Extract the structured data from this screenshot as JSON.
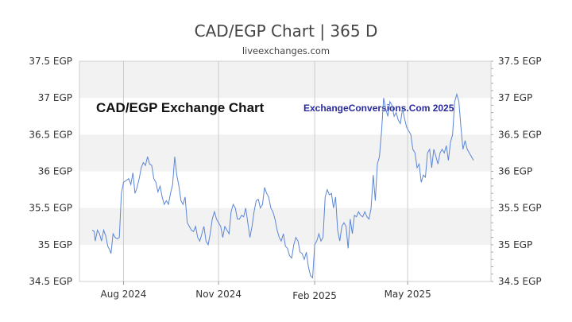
{
  "header": {
    "title": "CAD/EGP Chart | 365 D",
    "subtitle": "liveexchanges.com"
  },
  "watermarks": {
    "chart_label": "CAD/EGP Exchange Chart",
    "credit": "ExchangeConversions.Com 2025"
  },
  "colors": {
    "line": "#5b86d6",
    "band": "#f2f2f2",
    "grid": "#cccccc"
  },
  "chart_data": {
    "type": "line",
    "title": "CAD/EGP Chart | 365 D",
    "xlabel": "",
    "ylabel": "",
    "ylim": [
      34.5,
      37.5
    ],
    "y_ticks": [
      37.5,
      37,
      36.5,
      36,
      35.5,
      35,
      34.5
    ],
    "y_tick_labels": [
      "37.5 EGP",
      "37 EGP",
      "36.5 EGP",
      "36 EGP",
      "35.5 EGP",
      "35 EGP",
      "34.5 EGP"
    ],
    "x_range_days": [
      0,
      365
    ],
    "x_ticks": [
      {
        "day": 30,
        "label": "Aug 2024"
      },
      {
        "day": 121,
        "label": "Nov 2024"
      },
      {
        "day": 213,
        "label": "Feb 2025"
      },
      {
        "day": 302,
        "label": "May 2025"
      }
    ],
    "series": [
      {
        "name": "CAD/EGP",
        "points": [
          [
            0,
            35.2
          ],
          [
            2,
            35.18
          ],
          [
            3,
            35.05
          ],
          [
            5,
            35.2
          ],
          [
            7,
            35.15
          ],
          [
            9,
            35.05
          ],
          [
            11,
            35.2
          ],
          [
            13,
            35.12
          ],
          [
            15,
            34.98
          ],
          [
            17,
            34.92
          ],
          [
            18,
            34.88
          ],
          [
            20,
            35.15
          ],
          [
            22,
            35.1
          ],
          [
            24,
            35.08
          ],
          [
            26,
            35.1
          ],
          [
            28,
            35.7
          ],
          [
            30,
            35.85
          ],
          [
            33,
            35.88
          ],
          [
            35,
            35.9
          ],
          [
            37,
            35.82
          ],
          [
            39,
            35.98
          ],
          [
            41,
            35.7
          ],
          [
            43,
            35.78
          ],
          [
            45,
            35.9
          ],
          [
            47,
            36.05
          ],
          [
            49,
            36.12
          ],
          [
            51,
            36.08
          ],
          [
            53,
            36.2
          ],
          [
            55,
            36.1
          ],
          [
            57,
            36.08
          ],
          [
            59,
            35.9
          ],
          [
            61,
            35.85
          ],
          [
            63,
            35.72
          ],
          [
            65,
            35.8
          ],
          [
            67,
            35.65
          ],
          [
            69,
            35.55
          ],
          [
            71,
            35.6
          ],
          [
            73,
            35.55
          ],
          [
            75,
            35.7
          ],
          [
            77,
            35.82
          ],
          [
            79,
            36.2
          ],
          [
            81,
            35.95
          ],
          [
            83,
            35.8
          ],
          [
            85,
            35.6
          ],
          [
            87,
            35.55
          ],
          [
            89,
            35.65
          ],
          [
            91,
            35.3
          ],
          [
            93,
            35.25
          ],
          [
            95,
            35.2
          ],
          [
            97,
            35.18
          ],
          [
            99,
            35.25
          ],
          [
            101,
            35.1
          ],
          [
            103,
            35.05
          ],
          [
            105,
            35.15
          ],
          [
            107,
            35.25
          ],
          [
            109,
            35.05
          ],
          [
            111,
            35.0
          ],
          [
            113,
            35.15
          ],
          [
            115,
            35.35
          ],
          [
            117,
            35.45
          ],
          [
            119,
            35.35
          ],
          [
            121,
            35.3
          ],
          [
            123,
            35.25
          ],
          [
            125,
            35.1
          ],
          [
            127,
            35.25
          ],
          [
            129,
            35.2
          ],
          [
            131,
            35.15
          ],
          [
            133,
            35.45
          ],
          [
            135,
            35.55
          ],
          [
            137,
            35.5
          ],
          [
            139,
            35.35
          ],
          [
            141,
            35.35
          ],
          [
            143,
            35.4
          ],
          [
            145,
            35.38
          ],
          [
            147,
            35.5
          ],
          [
            149,
            35.3
          ],
          [
            151,
            35.1
          ],
          [
            153,
            35.25
          ],
          [
            155,
            35.45
          ],
          [
            157,
            35.6
          ],
          [
            159,
            35.62
          ],
          [
            161,
            35.5
          ],
          [
            163,
            35.55
          ],
          [
            165,
            35.78
          ],
          [
            167,
            35.7
          ],
          [
            169,
            35.65
          ],
          [
            171,
            35.5
          ],
          [
            173,
            35.45
          ],
          [
            175,
            35.35
          ],
          [
            177,
            35.2
          ],
          [
            179,
            35.1
          ],
          [
            181,
            35.05
          ],
          [
            183,
            35.15
          ],
          [
            185,
            34.98
          ],
          [
            187,
            34.95
          ],
          [
            189,
            34.85
          ],
          [
            191,
            34.82
          ],
          [
            193,
            35.0
          ],
          [
            195,
            35.1
          ],
          [
            197,
            35.05
          ],
          [
            199,
            34.9
          ],
          [
            201,
            34.88
          ],
          [
            203,
            34.8
          ],
          [
            205,
            34.9
          ],
          [
            207,
            34.7
          ],
          [
            209,
            34.58
          ],
          [
            211,
            34.55
          ],
          [
            213,
            35.0
          ],
          [
            215,
            35.05
          ],
          [
            217,
            35.15
          ],
          [
            219,
            35.05
          ],
          [
            221,
            35.1
          ],
          [
            223,
            35.65
          ],
          [
            225,
            35.75
          ],
          [
            227,
            35.68
          ],
          [
            229,
            35.7
          ],
          [
            231,
            35.5
          ],
          [
            233,
            35.65
          ],
          [
            235,
            35.2
          ],
          [
            237,
            35.05
          ],
          [
            239,
            35.25
          ],
          [
            241,
            35.3
          ],
          [
            243,
            35.25
          ],
          [
            245,
            34.95
          ],
          [
            247,
            35.35
          ],
          [
            249,
            35.15
          ],
          [
            251,
            35.4
          ],
          [
            253,
            35.38
          ],
          [
            255,
            35.45
          ],
          [
            257,
            35.4
          ],
          [
            259,
            35.38
          ],
          [
            261,
            35.45
          ],
          [
            263,
            35.38
          ],
          [
            265,
            35.35
          ],
          [
            267,
            35.5
          ],
          [
            269,
            35.95
          ],
          [
            271,
            35.6
          ],
          [
            273,
            36.1
          ],
          [
            275,
            36.2
          ],
          [
            277,
            36.55
          ],
          [
            279,
            37.0
          ],
          [
            281,
            36.85
          ],
          [
            283,
            36.75
          ],
          [
            285,
            36.95
          ],
          [
            287,
            36.9
          ],
          [
            289,
            36.75
          ],
          [
            291,
            36.8
          ],
          [
            293,
            36.7
          ],
          [
            295,
            36.65
          ],
          [
            297,
            36.85
          ],
          [
            299,
            36.72
          ],
          [
            301,
            36.6
          ],
          [
            303,
            36.55
          ],
          [
            305,
            36.5
          ],
          [
            307,
            36.3
          ],
          [
            309,
            36.25
          ],
          [
            311,
            36.05
          ],
          [
            313,
            36.1
          ],
          [
            315,
            35.85
          ],
          [
            317,
            35.95
          ],
          [
            319,
            35.92
          ],
          [
            321,
            36.25
          ],
          [
            323,
            36.3
          ],
          [
            325,
            36.05
          ],
          [
            327,
            36.3
          ],
          [
            329,
            36.2
          ],
          [
            331,
            36.1
          ],
          [
            333,
            36.25
          ],
          [
            335,
            36.3
          ],
          [
            337,
            36.25
          ],
          [
            339,
            36.35
          ],
          [
            341,
            36.15
          ],
          [
            343,
            36.4
          ],
          [
            345,
            36.5
          ],
          [
            347,
            36.95
          ],
          [
            349,
            37.05
          ],
          [
            351,
            36.95
          ],
          [
            353,
            36.6
          ],
          [
            355,
            36.3
          ],
          [
            357,
            36.42
          ],
          [
            359,
            36.3
          ],
          [
            361,
            36.25
          ],
          [
            363,
            36.2
          ],
          [
            365,
            36.15
          ]
        ]
      }
    ]
  }
}
